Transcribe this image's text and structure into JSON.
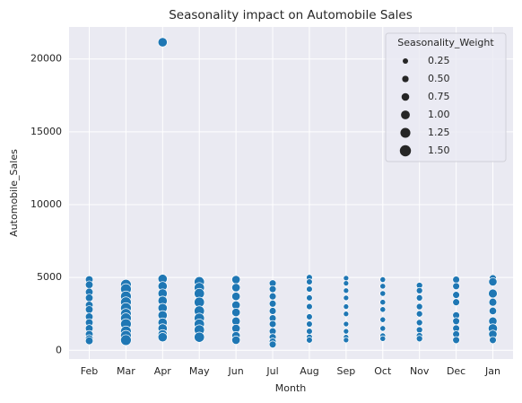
{
  "chart_data": {
    "type": "scatter",
    "title": "Seasonality impact on Automobile Sales",
    "xlabel": "Month",
    "ylabel": "Automobile_Sales",
    "color": "#1f77b4",
    "grid": true,
    "ylim": [
      -600,
      22200
    ],
    "yticks": [
      0,
      5000,
      10000,
      15000,
      20000
    ],
    "groups": [
      {
        "category": "Feb",
        "values": [
          4850,
          4500,
          4000,
          3600,
          3100,
          2800,
          2300,
          1900,
          1500,
          1100,
          800,
          650
        ],
        "sizes": [
          0.75,
          0.75,
          0.75,
          0.75,
          0.75,
          0.75,
          0.75,
          0.75,
          0.75,
          0.75,
          0.75,
          0.75
        ]
      },
      {
        "category": "Mar",
        "values": [
          4500,
          4200,
          3700,
          3300,
          2900,
          2500,
          2200,
          1800,
          1300,
          1000,
          700
        ],
        "sizes": [
          1.4,
          1.4,
          1.4,
          1.4,
          1.4,
          1.4,
          1.4,
          1.4,
          1.4,
          1.4,
          1.4
        ]
      },
      {
        "category": "Apr",
        "values": [
          21150,
          4900,
          4400,
          3900,
          3400,
          2900,
          2400,
          1900,
          1500,
          1100,
          900
        ],
        "sizes": [
          1.1,
          1.1,
          1.1,
          1.1,
          1.1,
          1.1,
          1.1,
          1.1,
          1.1,
          1.1,
          1.1
        ]
      },
      {
        "category": "May",
        "values": [
          4700,
          4300,
          3900,
          3300,
          2700,
          2200,
          1800,
          1400,
          900
        ],
        "sizes": [
          1.3,
          1.3,
          1.3,
          1.3,
          1.3,
          1.3,
          1.3,
          1.3,
          1.3
        ]
      },
      {
        "category": "Jun",
        "values": [
          4850,
          4300,
          3700,
          3100,
          2600,
          2000,
          1500,
          1000,
          700
        ],
        "sizes": [
          0.9,
          0.9,
          0.9,
          0.9,
          0.9,
          0.9,
          0.9,
          0.9,
          0.9
        ]
      },
      {
        "category": "Jul",
        "values": [
          4600,
          4200,
          3700,
          3200,
          2700,
          2200,
          1800,
          1300,
          900,
          600,
          400
        ],
        "sizes": [
          0.6,
          0.6,
          0.6,
          0.6,
          0.6,
          0.6,
          0.6,
          0.6,
          0.6,
          0.6,
          0.6
        ]
      },
      {
        "category": "Aug",
        "values": [
          5000,
          4700,
          4200,
          3600,
          3000,
          2300,
          1800,
          1300,
          900,
          700
        ],
        "sizes": [
          0.4,
          0.4,
          0.4,
          0.4,
          0.4,
          0.4,
          0.4,
          0.4,
          0.4,
          0.4
        ]
      },
      {
        "category": "Sep",
        "values": [
          4950,
          4600,
          4100,
          3600,
          3000,
          2500,
          1800,
          1300,
          900,
          700
        ],
        "sizes": [
          0.25,
          0.25,
          0.25,
          0.25,
          0.25,
          0.25,
          0.25,
          0.25,
          0.25,
          0.25
        ]
      },
      {
        "category": "Oct",
        "values": [
          4850,
          4400,
          3900,
          3300,
          2800,
          2100,
          1500,
          1000,
          800
        ],
        "sizes": [
          0.3,
          0.3,
          0.3,
          0.3,
          0.3,
          0.3,
          0.3,
          0.3,
          0.3
        ]
      },
      {
        "category": "Nov",
        "values": [
          4450,
          4100,
          3600,
          3000,
          2500,
          1900,
          1400,
          1000,
          800
        ],
        "sizes": [
          0.45,
          0.45,
          0.45,
          0.45,
          0.45,
          0.45,
          0.45,
          0.45,
          0.45
        ]
      },
      {
        "category": "Dec",
        "values": [
          4850,
          4400,
          3800,
          3300,
          2400,
          2000,
          1500,
          1100,
          700
        ],
        "sizes": [
          0.6,
          0.6,
          0.6,
          0.6,
          0.6,
          0.6,
          0.6,
          0.6,
          0.6
        ]
      },
      {
        "category": "Jan",
        "values": [
          4950,
          4700,
          3900,
          3300,
          2700,
          2000,
          1500,
          1100,
          700
        ],
        "sizes": [
          0.6,
          0.9,
          1.0,
          0.8,
          0.7,
          0.9,
          1.1,
          0.9,
          0.6
        ]
      }
    ],
    "legend": {
      "title": "Seasonality_Weight",
      "corner": "upper right",
      "sizes": [
        0.25,
        {
          "value": 0.5,
          "label": "0.50"
        },
        {
          "value": 0.75,
          "label": "0.75"
        },
        {
          "value": 1,
          "label": "1.00"
        },
        1.25,
        {
          "value": 1.5,
          "label": "1.50"
        }
      ]
    }
  }
}
